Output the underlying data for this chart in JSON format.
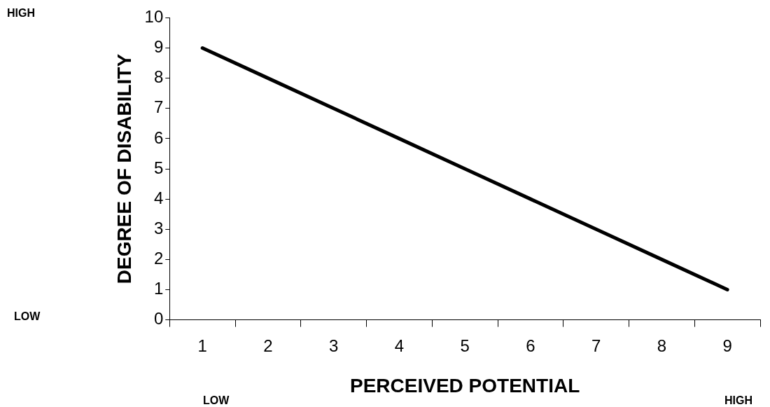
{
  "chart_data": {
    "type": "line",
    "xlabel": "PERCEIVED POTENTIAL",
    "ylabel": "DEGREE OF DISABILITY",
    "categories": [
      "1",
      "2",
      "3",
      "4",
      "5",
      "6",
      "7",
      "8",
      "9"
    ],
    "series": [
      {
        "color": "#000000",
        "values": [
          9,
          8,
          7,
          6,
          5,
          4,
          3,
          2,
          1
        ]
      }
    ],
    "ylim": [
      0,
      10
    ],
    "yticks": [
      0,
      1,
      2,
      3,
      4,
      5,
      6,
      7,
      8,
      9,
      10
    ],
    "grid": false,
    "legend": false,
    "annotations": [
      "HIGH",
      "LOW",
      "LOW",
      "HIGH"
    ]
  }
}
